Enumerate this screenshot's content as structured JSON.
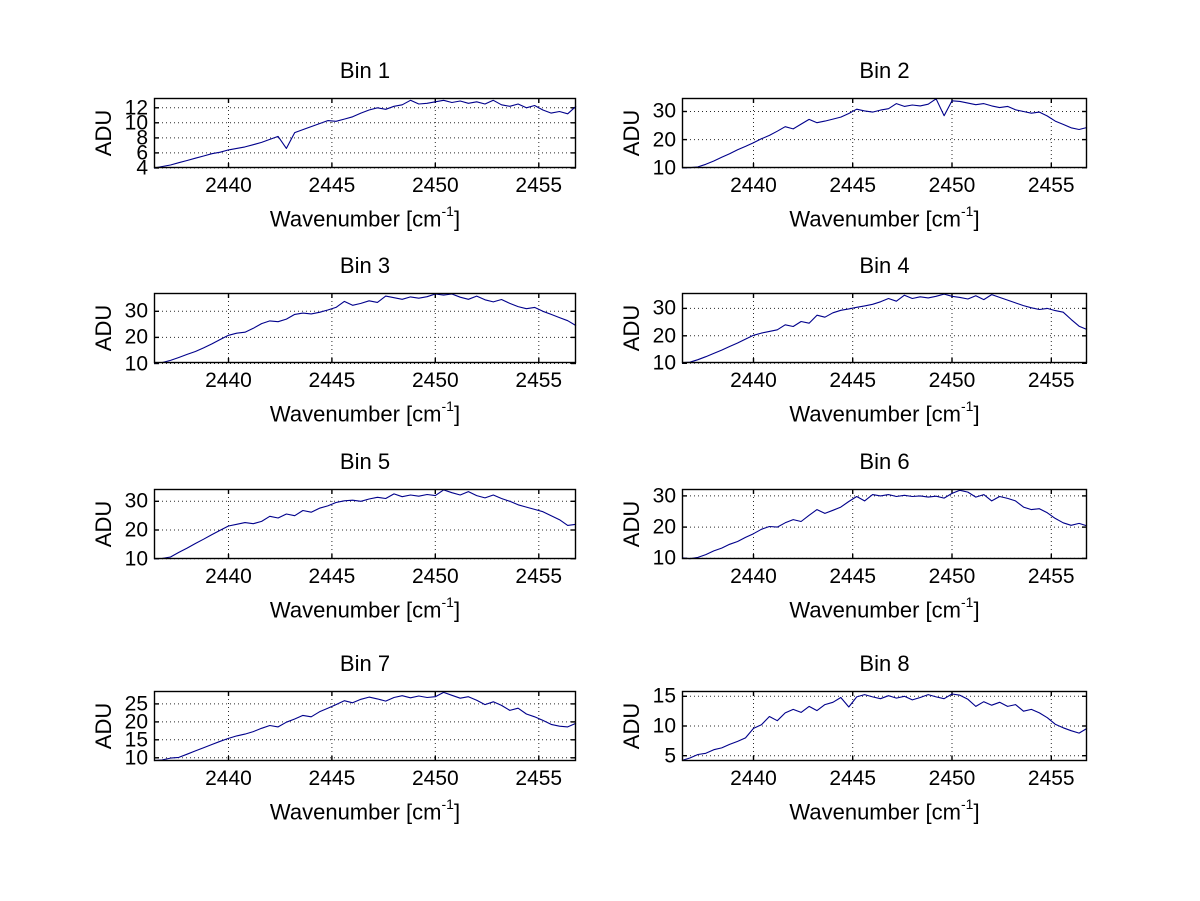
{
  "figure": {
    "background": "#ffffff"
  },
  "labels": {
    "ylabel": "ADU",
    "xlabel_main": "Wavenumber [cm",
    "xlabel_sup": "-1",
    "xlabel_close": "]"
  },
  "style": {
    "line_color": "#00008b",
    "grid_color": "#2b2b2b",
    "axis_color": "#000000",
    "text_color": "#000000"
  },
  "chart_data": {
    "type": "line",
    "layout": "4x2-grid",
    "grid": "on-dotted",
    "x_axis": {
      "label": "Wavenumber [cm^-1]",
      "ticks": [
        2440,
        2445,
        2450,
        2455
      ],
      "range": [
        2436.4,
        2456.8
      ]
    },
    "x": [
      2436.4,
      2436.8,
      2437.2,
      2437.6,
      2438.0,
      2438.4,
      2438.8,
      2439.2,
      2439.6,
      2440.0,
      2440.4,
      2440.8,
      2441.2,
      2441.6,
      2442.0,
      2442.4,
      2442.8,
      2443.2,
      2443.6,
      2444.0,
      2444.4,
      2444.8,
      2445.2,
      2445.6,
      2446.0,
      2446.4,
      2446.8,
      2447.2,
      2447.6,
      2448.0,
      2448.4,
      2448.8,
      2449.2,
      2449.6,
      2450.0,
      2450.4,
      2450.8,
      2451.2,
      2451.6,
      2452.0,
      2452.4,
      2452.8,
      2453.2,
      2453.6,
      2454.0,
      2454.4,
      2454.8,
      2455.2,
      2455.6,
      2456.0,
      2456.4,
      2456.8
    ],
    "subplots": [
      {
        "title": "Bin 1",
        "ylabel": "ADU",
        "yticks": [
          4,
          6,
          8,
          10,
          12
        ],
        "ylim": [
          4.0,
          13.3
        ],
        "values": [
          4.0,
          4.2,
          4.4,
          4.7,
          5.0,
          5.3,
          5.6,
          5.9,
          6.1,
          6.4,
          6.6,
          6.8,
          7.1,
          7.4,
          7.8,
          8.2,
          6.6,
          8.7,
          9.1,
          9.5,
          9.9,
          10.3,
          10.2,
          10.5,
          10.8,
          11.3,
          11.7,
          12.0,
          11.8,
          12.2,
          12.4,
          13.0,
          12.5,
          12.6,
          12.8,
          13.0,
          12.7,
          12.9,
          12.6,
          12.8,
          12.5,
          13.0,
          12.4,
          12.2,
          12.5,
          12.0,
          12.3,
          11.7,
          11.3,
          11.5,
          11.2,
          12.2
        ]
      },
      {
        "title": "Bin 2",
        "ylabel": "ADU",
        "yticks": [
          10,
          20,
          30
        ],
        "ylim": [
          9.9,
          34.8
        ],
        "values": [
          10.0,
          10.0,
          10.3,
          11.2,
          12.4,
          13.7,
          15.0,
          16.4,
          17.6,
          18.9,
          20.3,
          21.5,
          23.0,
          24.6,
          23.8,
          25.5,
          27.2,
          26.0,
          26.6,
          27.3,
          28.0,
          29.3,
          30.8,
          30.2,
          29.8,
          30.5,
          31.0,
          32.8,
          31.8,
          32.3,
          32.0,
          32.6,
          34.5,
          28.5,
          33.8,
          33.6,
          33.0,
          32.4,
          32.8,
          32.0,
          31.4,
          31.8,
          30.6,
          30.0,
          29.4,
          29.8,
          28.4,
          26.6,
          25.4,
          24.2,
          23.6,
          24.3
        ]
      },
      {
        "title": "Bin 3",
        "ylabel": "ADU",
        "yticks": [
          10,
          20,
          30
        ],
        "ylim": [
          10.2,
          37.0
        ],
        "values": [
          10.3,
          10.4,
          11.2,
          12.3,
          13.5,
          14.6,
          16.0,
          17.5,
          19.2,
          20.8,
          21.6,
          22.0,
          23.5,
          25.3,
          26.3,
          26.0,
          27.0,
          28.8,
          29.3,
          29.0,
          29.6,
          30.5,
          31.5,
          33.8,
          32.3,
          33.0,
          34.0,
          33.4,
          35.8,
          35.2,
          34.6,
          35.5,
          35.0,
          35.6,
          36.6,
          36.2,
          36.6,
          35.4,
          34.6,
          35.8,
          34.4,
          33.6,
          34.5,
          33.0,
          31.8,
          31.0,
          31.5,
          30.0,
          28.8,
          27.6,
          26.4,
          24.5
        ]
      },
      {
        "title": "Bin 4",
        "ylabel": "ADU",
        "yticks": [
          10,
          20,
          30
        ],
        "ylim": [
          10.1,
          35.6
        ],
        "values": [
          10.2,
          10.4,
          11.3,
          12.4,
          13.6,
          14.8,
          16.1,
          17.4,
          18.8,
          20.2,
          21.0,
          21.6,
          22.2,
          24.0,
          23.4,
          25.2,
          24.6,
          27.5,
          26.8,
          28.4,
          29.3,
          29.8,
          30.4,
          30.9,
          31.5,
          32.4,
          33.6,
          32.6,
          34.8,
          33.6,
          34.2,
          33.8,
          34.4,
          35.2,
          34.4,
          34.0,
          33.4,
          34.6,
          33.2,
          35.0,
          34.0,
          33.0,
          32.0,
          31.0,
          30.2,
          29.6,
          30.0,
          29.2,
          28.6,
          26.0,
          23.5,
          22.3
        ]
      },
      {
        "title": "Bin 5",
        "ylabel": "ADU",
        "yticks": [
          10,
          20,
          30
        ],
        "ylim": [
          9.9,
          34.3
        ],
        "values": [
          10.0,
          10.1,
          10.6,
          12.2,
          13.7,
          15.3,
          16.8,
          18.4,
          19.9,
          21.4,
          22.0,
          22.6,
          22.2,
          23.0,
          24.8,
          24.2,
          25.6,
          25.0,
          26.8,
          26.2,
          27.6,
          28.4,
          29.6,
          30.2,
          30.4,
          30.0,
          30.8,
          31.4,
          31.0,
          32.6,
          31.6,
          32.2,
          31.8,
          32.4,
          32.0,
          34.0,
          33.0,
          32.2,
          33.4,
          32.0,
          31.2,
          32.2,
          31.0,
          30.0,
          28.8,
          28.0,
          27.2,
          26.4,
          25.0,
          23.6,
          21.6,
          22.0
        ]
      },
      {
        "title": "Bin 6",
        "ylabel": "ADU",
        "yticks": [
          10,
          20,
          30
        ],
        "ylim": [
          9.8,
          32.2
        ],
        "values": [
          10.2,
          9.9,
          10.3,
          11.2,
          12.4,
          13.3,
          14.5,
          15.4,
          16.7,
          17.9,
          19.3,
          20.2,
          20.0,
          21.4,
          22.4,
          21.8,
          23.8,
          25.6,
          24.4,
          25.4,
          26.4,
          28.2,
          29.8,
          28.4,
          30.4,
          30.0,
          30.4,
          29.8,
          30.2,
          29.8,
          30.0,
          29.6,
          29.9,
          29.3,
          30.8,
          31.8,
          31.2,
          29.6,
          30.4,
          28.4,
          29.8,
          29.2,
          28.4,
          26.4,
          25.6,
          25.9,
          24.6,
          22.8,
          21.4,
          20.6,
          21.2,
          20.4
        ]
      },
      {
        "title": "Bin 7",
        "ylabel": "ADU",
        "yticks": [
          10,
          15,
          20,
          25
        ],
        "ylim": [
          9.1,
          28.6
        ],
        "values": [
          9.2,
          9.4,
          9.9,
          10.1,
          11.0,
          11.9,
          12.8,
          13.7,
          14.6,
          15.4,
          16.1,
          16.6,
          17.3,
          18.2,
          19.0,
          18.6,
          19.9,
          20.8,
          21.8,
          21.4,
          22.8,
          23.8,
          24.8,
          25.9,
          25.3,
          26.3,
          26.9,
          26.4,
          25.8,
          26.8,
          27.3,
          26.7,
          27.2,
          26.8,
          27.0,
          28.2,
          27.4,
          26.6,
          27.0,
          26.0,
          24.8,
          25.6,
          24.6,
          23.2,
          23.8,
          22.2,
          21.4,
          20.4,
          19.3,
          18.8,
          18.6,
          19.6
        ]
      },
      {
        "title": "Bin 8",
        "ylabel": "ADU",
        "yticks": [
          5,
          10,
          15
        ],
        "ylim": [
          4.1,
          15.9
        ],
        "values": [
          4.2,
          4.6,
          5.2,
          5.4,
          6.0,
          6.3,
          6.9,
          7.4,
          8.0,
          9.6,
          10.2,
          11.6,
          10.9,
          12.2,
          12.8,
          12.3,
          13.3,
          12.6,
          13.6,
          14.0,
          14.8,
          13.2,
          14.9,
          15.3,
          14.9,
          14.6,
          15.1,
          14.7,
          15.0,
          14.4,
          14.8,
          15.3,
          14.9,
          14.6,
          15.4,
          15.2,
          14.5,
          13.3,
          14.1,
          13.5,
          14.0,
          13.3,
          13.6,
          12.5,
          12.8,
          12.2,
          11.4,
          10.3,
          9.7,
          9.2,
          8.8,
          9.6
        ]
      }
    ]
  }
}
